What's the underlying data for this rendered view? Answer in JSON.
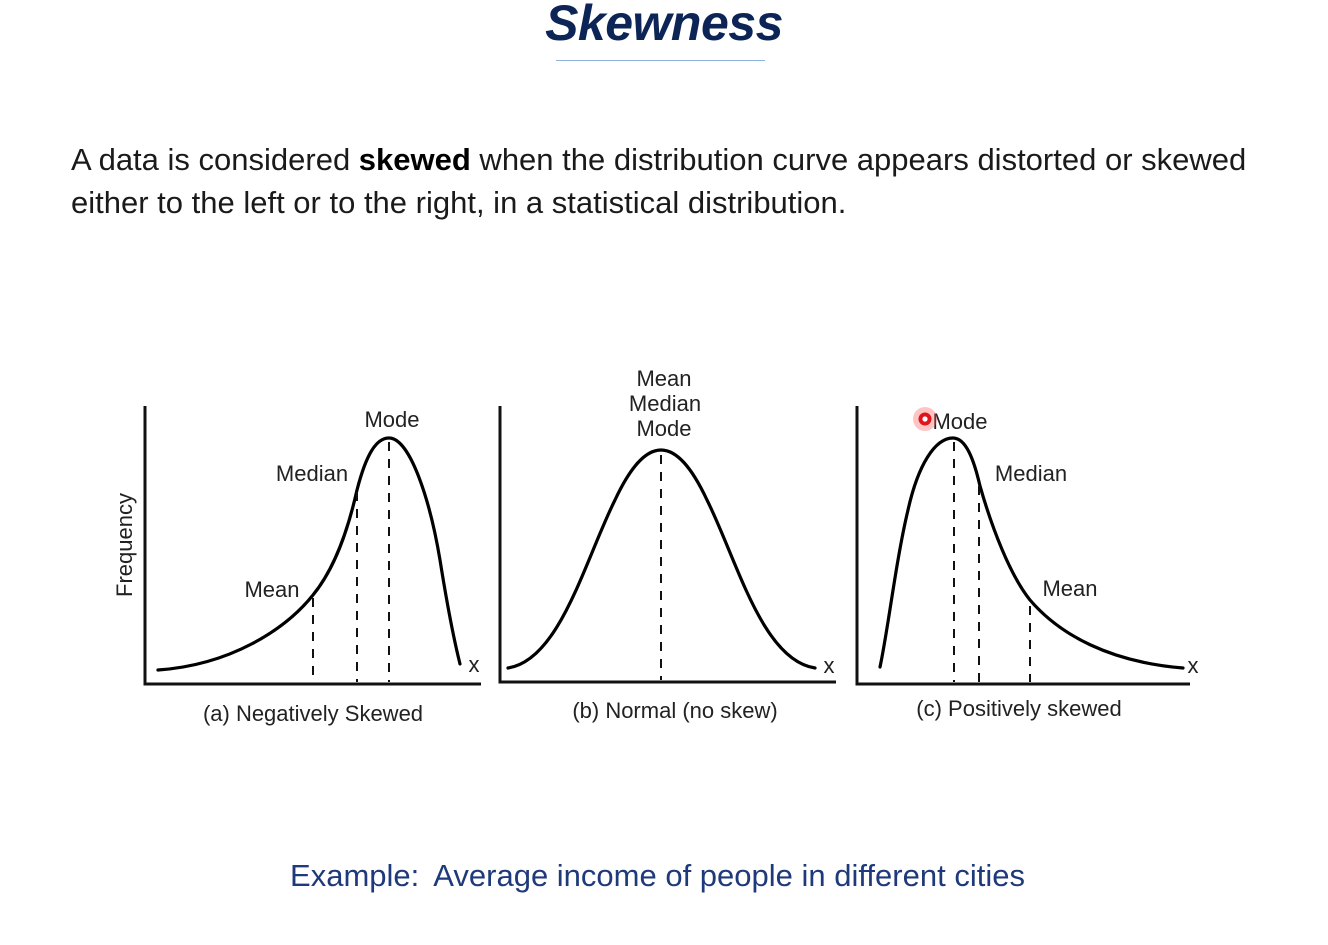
{
  "slide": {
    "title": "Skewness",
    "description_before": "A data is considered ",
    "description_bold": "skewed",
    "description_after": " when the distribution curve appears distorted or skewed either to the left or to the right, in a statistical distribution.",
    "example_prefix": "Example:",
    "example_text": "Average income of people in different cities"
  },
  "diagram": {
    "y_axis_label": "Frequency",
    "panels": [
      {
        "caption": "(a) Negatively Skewed",
        "x_label": "x",
        "mode_label": "Mode",
        "median_label": "Median",
        "mean_label": "Mean"
      },
      {
        "caption": "(b) Normal (no skew)",
        "x_label": "x",
        "mean_label": "Mean",
        "median_label": "Median",
        "mode_label": "Mode"
      },
      {
        "caption": "(c) Positively skewed",
        "x_label": "x",
        "mode_label": "Mode",
        "median_label": "Median",
        "mean_label": "Mean"
      }
    ]
  },
  "colors": {
    "title": "#0d2456",
    "example": "#1f3a7a",
    "pointer": "#e0141c"
  }
}
